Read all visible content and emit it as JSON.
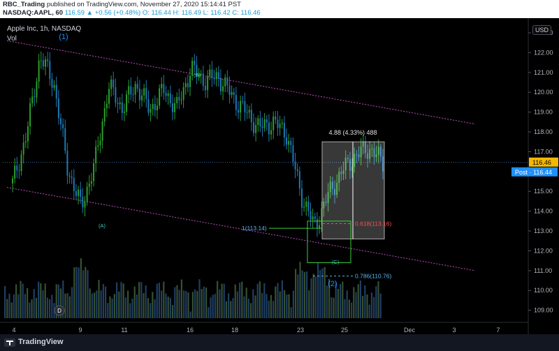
{
  "header": {
    "publisher": "RBC_Trading",
    "published_text": "published on TradingView.com, November 27, 2020 15:14:41 PST",
    "ticker": "NASDAQ:AAPL, 60",
    "ohlc": "116.59 ▲ +0.56 (+0.48%) O: 116.44 H: 116.49 L: 116.42 C: 116.46"
  },
  "legend": {
    "symbol": "Apple Inc, 1h, NASDAQ",
    "volume": "Vol"
  },
  "currency_button": "USD",
  "footer": {
    "brand": "TradingView"
  },
  "colors": {
    "background": "#000000",
    "up": "#2ca02c",
    "down": "#1f77b4",
    "channel": "#c04fc0",
    "wave_label": "#1e90ff",
    "fib_label": "#56b6f0",
    "fib_red": "#ff4f4f",
    "last_price": "#f5b800",
    "post_price": "#1e90ff"
  },
  "chart_data": {
    "type": "candlestick",
    "y_axis": {
      "range": [
        108.6,
        123.6
      ],
      "ticks": [
        "123.00",
        "122.00",
        "121.00",
        "120.00",
        "119.00",
        "118.00",
        "117.00",
        "116.00",
        "115.00",
        "114.00",
        "113.00",
        "112.00",
        "111.00",
        "110.00",
        "109.00"
      ]
    },
    "x_ticks": [
      "4",
      "9",
      "11",
      "16",
      "18",
      "23",
      "25",
      "Dec",
      "3",
      "7"
    ],
    "price_badges": {
      "last": "116.46",
      "post_label": "Post",
      "post": "116.44"
    },
    "wave_labels": [
      "(1)",
      "(2)",
      "(A)",
      "(B)",
      "(C)",
      "D"
    ],
    "annotations": {
      "measure": "4.88 (4.33%) 488",
      "fib_1": "1(113.14)",
      "fib_0618": "0.618(113.16)",
      "fib_0786": "0.786(110.76)"
    },
    "price_path": [
      115.4,
      117.8,
      121.8,
      120.5,
      116.2,
      114.2,
      116.4,
      120.3,
      119.2,
      120.4,
      119.1,
      120.1,
      119.2,
      121.2,
      120.6,
      120.8,
      119.8,
      119.0,
      118.2,
      118.5,
      117.9,
      114.9,
      113.2,
      114.8,
      116.0,
      116.8,
      117.2,
      116.46
    ]
  }
}
